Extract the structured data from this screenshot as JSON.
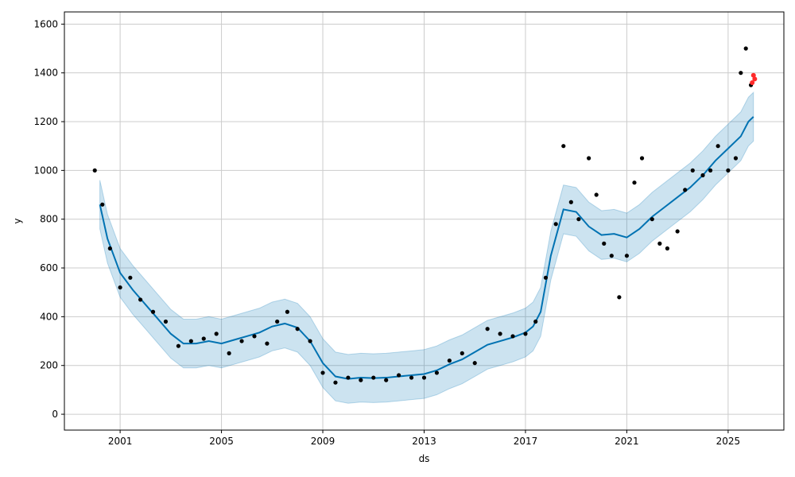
{
  "chart_data": {
    "type": "line",
    "xlabel": "ds",
    "ylabel": "y",
    "xlim": [
      1998.8,
      2027.2
    ],
    "ylim": [
      -65,
      1650
    ],
    "xticks": [
      {
        "value": 2001,
        "label": "2001"
      },
      {
        "value": 2005,
        "label": "2005"
      },
      {
        "value": 2009,
        "label": "2009"
      },
      {
        "value": 2013,
        "label": "2013"
      },
      {
        "value": 2017,
        "label": "2017"
      },
      {
        "value": 2021,
        "label": "2021"
      },
      {
        "value": 2025,
        "label": "2025"
      }
    ],
    "yticks": [
      {
        "value": 0,
        "label": "0"
      },
      {
        "value": 200,
        "label": "200"
      },
      {
        "value": 400,
        "label": "400"
      },
      {
        "value": 600,
        "label": "600"
      },
      {
        "value": 800,
        "label": "800"
      },
      {
        "value": 1000,
        "label": "1000"
      },
      {
        "value": 1200,
        "label": "1200"
      },
      {
        "value": 1400,
        "label": "1400"
      },
      {
        "value": 1600,
        "label": "1600"
      }
    ],
    "grid": true,
    "colors": {
      "observed": "#000000",
      "forecast_line": "#0072B2",
      "uncertainty_band": "#0072B2",
      "highlight": "#ff2a2a"
    },
    "series": [
      {
        "role": "forecast",
        "x": [
          2000.2,
          2000.5,
          2001.0,
          2001.5,
          2002.0,
          2002.5,
          2003.0,
          2003.5,
          2004.0,
          2004.5,
          2005.0,
          2005.5,
          2006.0,
          2006.5,
          2007.0,
          2007.5,
          2008.0,
          2008.5,
          2009.0,
          2009.5,
          2010.0,
          2010.5,
          2011.0,
          2011.5,
          2012.0,
          2012.5,
          2013.0,
          2013.5,
          2014.0,
          2014.5,
          2015.0,
          2015.5,
          2016.0,
          2016.5,
          2017.0,
          2017.3,
          2017.6,
          2018.0,
          2018.5,
          2019.0,
          2019.5,
          2020.0,
          2020.5,
          2021.0,
          2021.5,
          2022.0,
          2022.5,
          2023.0,
          2023.5,
          2024.0,
          2024.5,
          2025.0,
          2025.5,
          2025.8,
          2026.0
        ],
        "y": [
          860,
          720,
          580,
          510,
          450,
          390,
          330,
          290,
          290,
          300,
          290,
          305,
          320,
          335,
          360,
          372,
          355,
          300,
          210,
          155,
          145,
          150,
          148,
          150,
          155,
          160,
          165,
          180,
          205,
          225,
          255,
          285,
          300,
          315,
          335,
          360,
          420,
          650,
          840,
          830,
          770,
          735,
          740,
          725,
          760,
          810,
          850,
          890,
          930,
          980,
          1040,
          1090,
          1140,
          1200,
          1220
        ],
        "lower": [
          760,
          620,
          480,
          410,
          350,
          290,
          230,
          190,
          190,
          200,
          190,
          205,
          220,
          235,
          260,
          272,
          255,
          200,
          110,
          55,
          45,
          50,
          48,
          50,
          55,
          60,
          65,
          80,
          105,
          125,
          155,
          185,
          200,
          215,
          235,
          260,
          320,
          550,
          740,
          730,
          670,
          635,
          640,
          625,
          660,
          710,
          750,
          790,
          830,
          880,
          940,
          990,
          1040,
          1100,
          1120
        ],
        "upper": [
          960,
          820,
          680,
          610,
          550,
          490,
          430,
          390,
          390,
          400,
          390,
          405,
          420,
          435,
          460,
          472,
          455,
          400,
          310,
          255,
          245,
          250,
          248,
          250,
          255,
          260,
          265,
          280,
          305,
          325,
          355,
          385,
          400,
          415,
          435,
          460,
          520,
          750,
          940,
          930,
          870,
          835,
          840,
          825,
          860,
          910,
          950,
          990,
          1030,
          1080,
          1140,
          1190,
          1240,
          1300,
          1320
        ]
      },
      {
        "role": "observed",
        "x": [
          2000.0,
          2000.3,
          2000.6,
          2001.0,
          2001.4,
          2001.8,
          2002.3,
          2002.8,
          2003.3,
          2003.8,
          2004.3,
          2004.8,
          2005.3,
          2005.8,
          2006.3,
          2006.8,
          2007.2,
          2007.6,
          2008.0,
          2008.5,
          2009.0,
          2009.5,
          2010.0,
          2010.5,
          2011.0,
          2011.5,
          2012.0,
          2012.5,
          2013.0,
          2013.5,
          2014.0,
          2014.5,
          2015.0,
          2015.5,
          2016.0,
          2016.5,
          2017.0,
          2017.4,
          2017.8,
          2018.2,
          2018.5,
          2018.8,
          2019.1,
          2019.5,
          2019.8,
          2020.1,
          2020.4,
          2020.7,
          2021.0,
          2021.3,
          2021.6,
          2022.0,
          2022.3,
          2022.6,
          2023.0,
          2023.3,
          2023.6,
          2024.0,
          2024.3,
          2024.6,
          2025.0,
          2025.3,
          2025.5,
          2025.7,
          2025.9
        ],
        "y": [
          1000,
          860,
          680,
          520,
          560,
          470,
          420,
          380,
          280,
          300,
          310,
          330,
          250,
          300,
          320,
          290,
          380,
          420,
          350,
          300,
          170,
          130,
          150,
          140,
          150,
          140,
          160,
          150,
          150,
          170,
          220,
          250,
          210,
          350,
          330,
          320,
          330,
          380,
          560,
          780,
          1100,
          870,
          800,
          1050,
          900,
          700,
          650,
          480,
          650,
          950,
          1050,
          800,
          700,
          680,
          750,
          920,
          1000,
          980,
          1000,
          1100,
          1000,
          1050,
          1400,
          1500,
          1350
        ]
      },
      {
        "role": "highlight",
        "x": [
          2025.95,
          2026.0,
          2026.05
        ],
        "y": [
          1360,
          1390,
          1375
        ]
      }
    ]
  }
}
